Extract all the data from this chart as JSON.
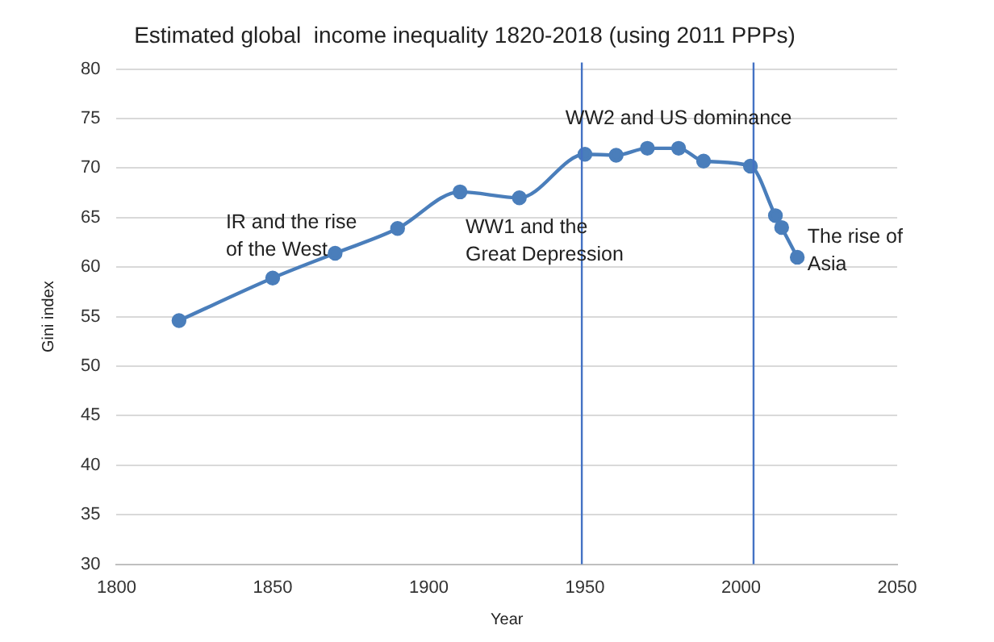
{
  "chart_data": {
    "type": "line",
    "title": "Estimated global  income inequality 1820-2018 (using 2011 PPPs)",
    "xlabel": "Year",
    "ylabel": "Gini index",
    "x": [
      1820,
      1850,
      1870,
      1890,
      1910,
      1929,
      1950,
      1960,
      1970,
      1980,
      1988,
      2003,
      2011,
      2013,
      2018
    ],
    "series": [
      {
        "color": "#4a7ebb",
        "values": [
          54.6,
          58.9,
          61.4,
          63.9,
          67.6,
          67.0,
          71.4,
          71.3,
          72.0,
          72.0,
          70.7,
          70.2,
          65.2,
          64.0,
          61.0
        ]
      }
    ],
    "xlim": [
      1800,
      2050
    ],
    "xticks": [
      1800,
      1850,
      1900,
      1950,
      2000,
      2050
    ],
    "ylim": [
      30,
      80
    ],
    "yticks": [
      30,
      35,
      40,
      45,
      50,
      55,
      60,
      65,
      70,
      75,
      80
    ],
    "grid": "y",
    "legend": false,
    "marker": "circle",
    "line_style": "solid",
    "ref_lines": [
      {
        "axis": "x",
        "value": 1949,
        "color": "#4472c4"
      },
      {
        "axis": "x",
        "value": 2004,
        "color": "#4472c4"
      }
    ],
    "annotations": [
      "IR and the rise\nof the West",
      "WW1 and the\nGreat Depression",
      "WW2 and US dominance",
      "The rise of\nAsia"
    ]
  }
}
